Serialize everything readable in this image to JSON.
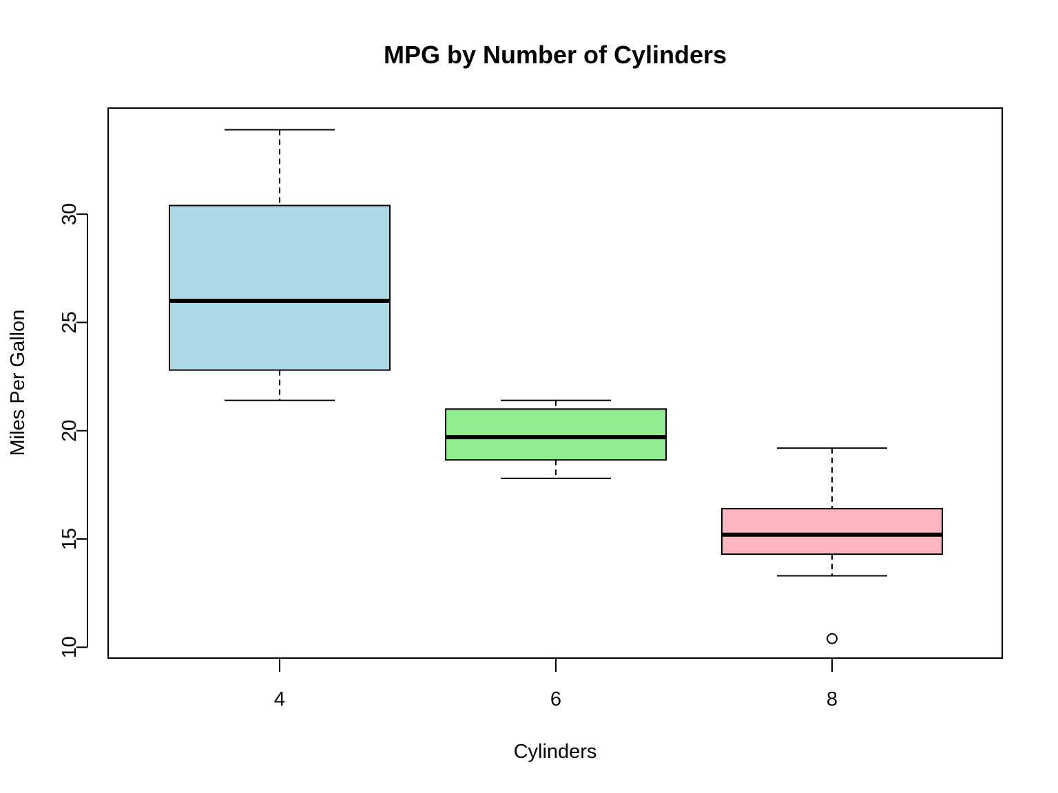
{
  "chart_data": {
    "type": "boxplot",
    "title": "MPG by Number of Cylinders",
    "xlabel": "Cylinders",
    "ylabel": "Miles Per Gallon",
    "ylim": [
      9.5,
      34.9
    ],
    "yticks": [
      10,
      15,
      20,
      25,
      30
    ],
    "grid": false,
    "legend": "none",
    "categories": [
      "4",
      "6",
      "8"
    ],
    "boxes": [
      {
        "category": "4",
        "min": 21.4,
        "q1": 22.8,
        "median": 26.0,
        "q3": 30.4,
        "max": 33.9,
        "outliers": [],
        "color": "#add8e6"
      },
      {
        "category": "6",
        "min": 17.8,
        "q1": 18.65,
        "median": 19.7,
        "q3": 21.0,
        "max": 21.4,
        "outliers": [],
        "color": "#90ee90"
      },
      {
        "category": "8",
        "min": 13.3,
        "q1": 14.3,
        "median": 15.2,
        "q3": 16.4,
        "max": 19.2,
        "outliers": [
          10.4
        ],
        "color": "#ffb6c1"
      }
    ]
  }
}
